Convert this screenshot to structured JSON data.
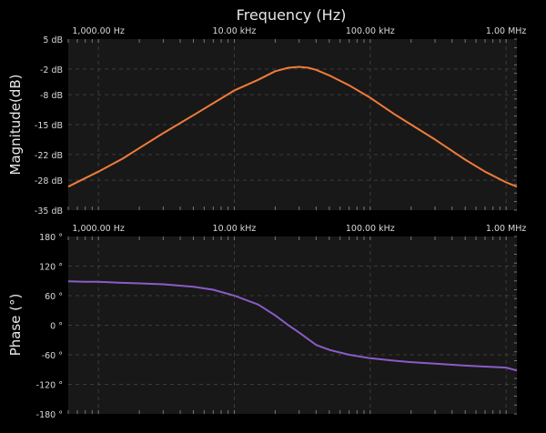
{
  "chart_data": [
    {
      "type": "line",
      "title": "Frequency (Hz)",
      "ylabel": "Magnitude(dB)",
      "x_scale": "log",
      "xlim": [
        600,
        1200000
      ],
      "ylim": [
        -35,
        5
      ],
      "x_ticks": [
        1000,
        10000,
        100000,
        1000000
      ],
      "x_tick_labels": [
        "1,000.00 Hz",
        "10.00 kHz",
        "100.00 kHz",
        "1.00 MHz"
      ],
      "y_ticks": [
        5,
        -2,
        -8,
        -15,
        -22,
        -28,
        -35
      ],
      "y_tick_labels": [
        "5 dB",
        "-2 dB",
        "-8 dB",
        "-15 dB",
        "-22 dB",
        "-28 dB",
        "-35 dB"
      ],
      "grid": true,
      "colors": {
        "line": "#f07b3a",
        "background": "#181818",
        "grid": "#3c3c3c"
      },
      "series": [
        {
          "x": [
            600,
            800,
            1000,
            1500,
            2000,
            3000,
            5000,
            7000,
            10000,
            15000,
            20000,
            25000,
            30000,
            35000,
            40000,
            50000,
            70000,
            100000,
            150000,
            200000,
            300000,
            500000,
            700000,
            1000000,
            1200000
          ],
          "values": [
            -29.5,
            -27.5,
            -26.0,
            -23.0,
            -20.5,
            -17.0,
            -12.8,
            -10.0,
            -7.0,
            -4.5,
            -2.5,
            -1.7,
            -1.5,
            -1.7,
            -2.2,
            -3.5,
            -5.8,
            -8.7,
            -12.5,
            -15.0,
            -18.5,
            -23.2,
            -26.0,
            -28.5,
            -29.5
          ]
        }
      ]
    },
    {
      "type": "line",
      "ylabel": "Phase (°)",
      "x_scale": "log",
      "xlim": [
        600,
        1200000
      ],
      "ylim": [
        -180,
        180
      ],
      "x_ticks": [
        1000,
        10000,
        100000,
        1000000
      ],
      "x_tick_labels": [
        "1,000.00 Hz",
        "10.00 kHz",
        "100.00 kHz",
        "1.00 MHz"
      ],
      "y_ticks": [
        180,
        120,
        60,
        0,
        -60,
        -120,
        -180
      ],
      "y_tick_labels": [
        "180 °",
        "120 °",
        "60 °",
        "0 °",
        "-60 °",
        "-120 °",
        "-180 °"
      ],
      "grid": true,
      "colors": {
        "line": "#8a5cc8",
        "background": "#181818",
        "grid": "#3c3c3c"
      },
      "series": [
        {
          "x": [
            600,
            800,
            1000,
            1500,
            2000,
            3000,
            5000,
            7000,
            10000,
            15000,
            20000,
            25000,
            30000,
            40000,
            50000,
            70000,
            100000,
            150000,
            200000,
            300000,
            500000,
            700000,
            1000000,
            1200000
          ],
          "values": [
            89,
            88,
            88,
            86,
            85,
            83,
            78,
            72,
            60,
            42,
            20,
            0,
            -15,
            -40,
            -50,
            -60,
            -67,
            -72,
            -75,
            -78,
            -82,
            -84,
            -86,
            -92
          ]
        }
      ]
    }
  ]
}
